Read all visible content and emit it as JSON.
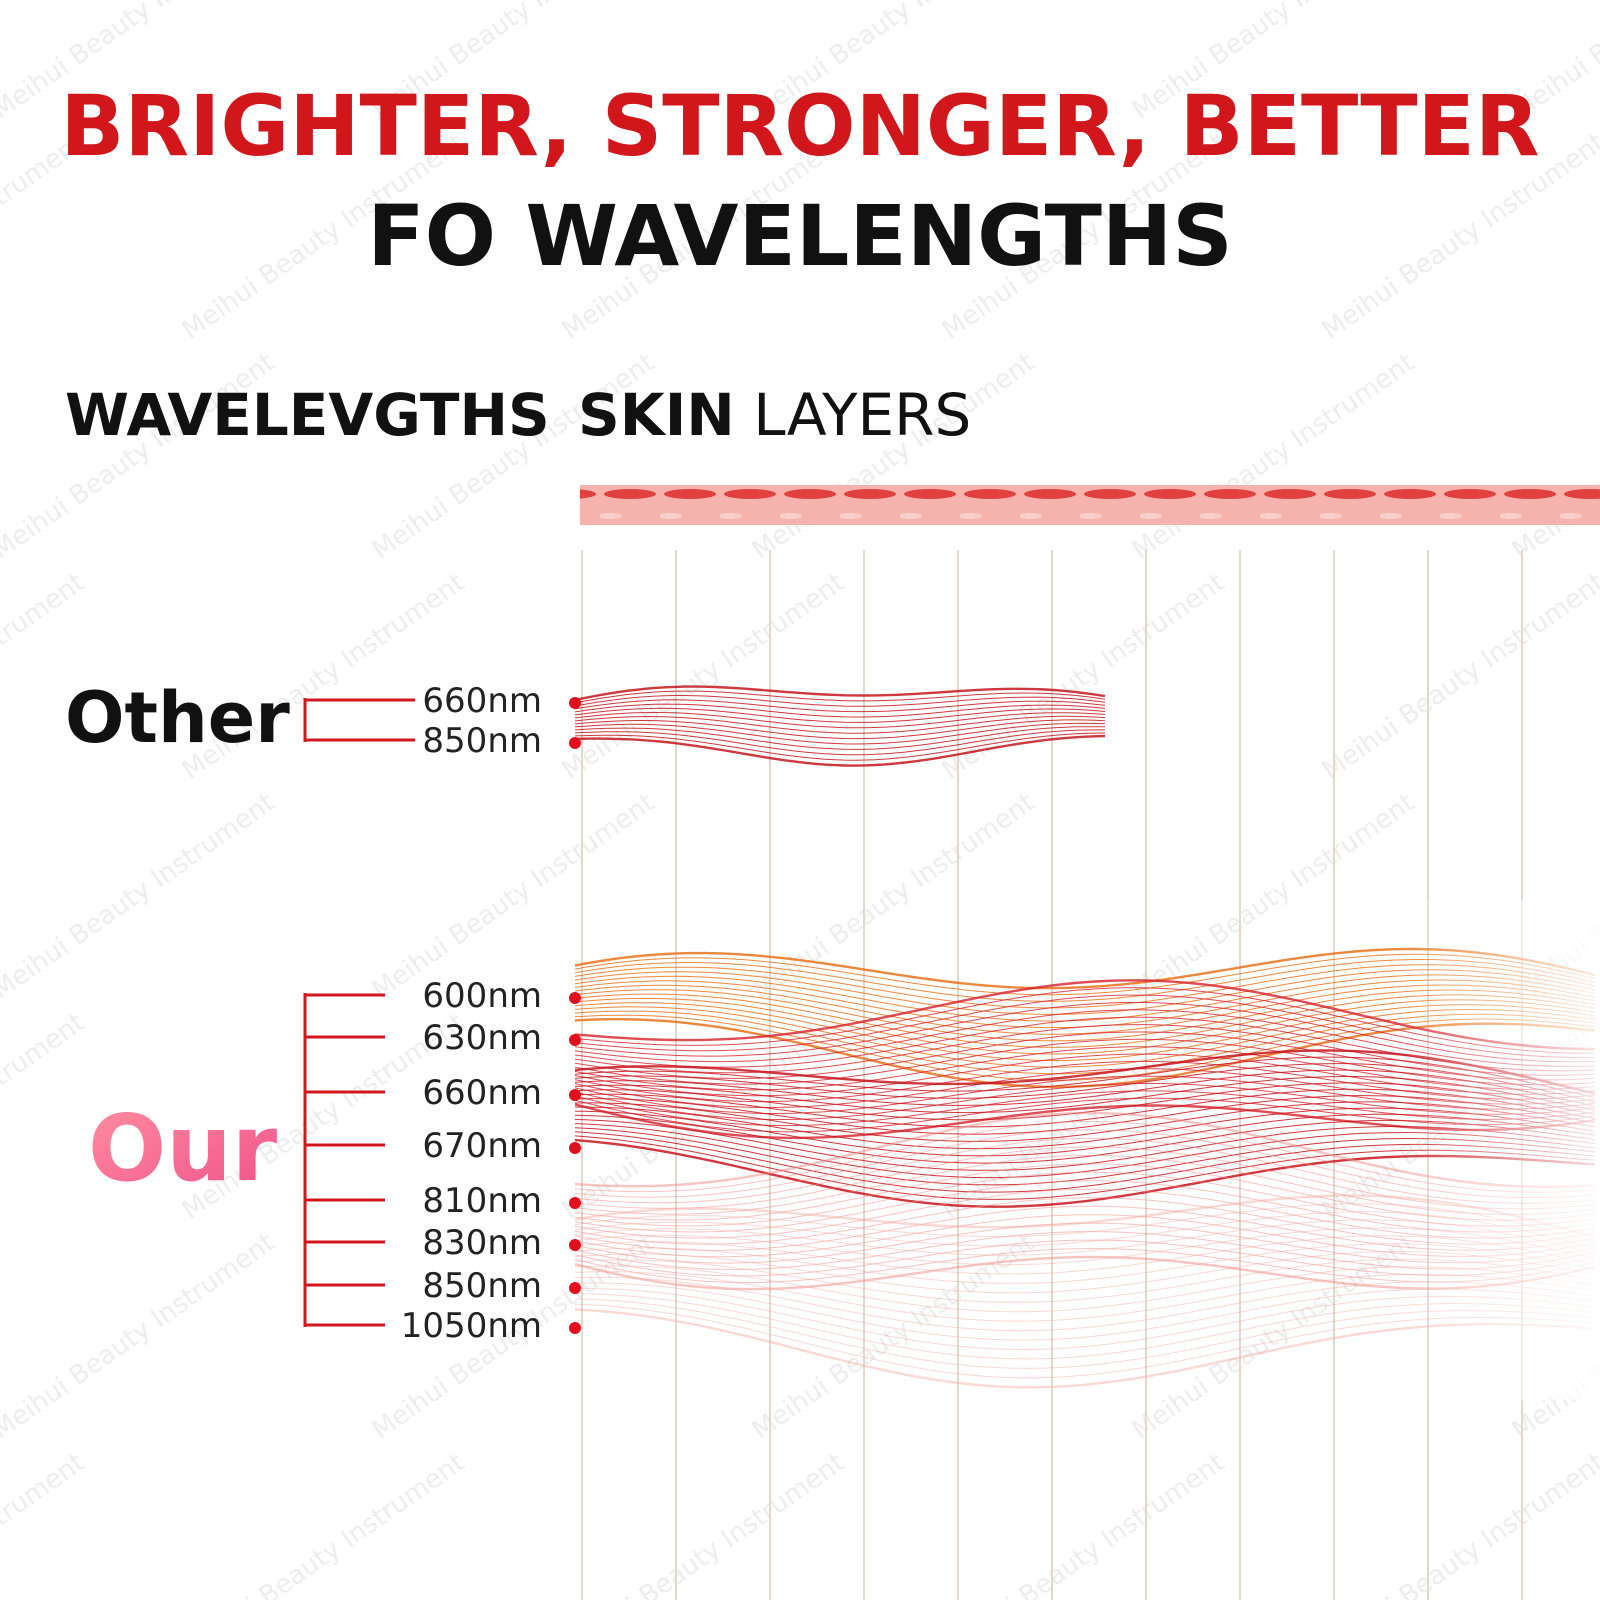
{
  "title": {
    "line1": "BRIGHTER, STRONGER, BETTER",
    "line2": "FO WAVELENGTHS"
  },
  "headings": {
    "wavelengths": "WAVELEVGTHS",
    "skin": "SKIN",
    "layers": "LAYERS"
  },
  "groups": [
    {
      "name": "Other",
      "labels": [
        "660nm",
        "850nm"
      ]
    },
    {
      "name": "Our",
      "labels": [
        "600nm",
        "630nm",
        "660nm",
        "670nm",
        "810nm",
        "830nm",
        "850nm",
        "1050nm"
      ]
    }
  ],
  "watermark": "Meihui Beauty Instrument"
}
